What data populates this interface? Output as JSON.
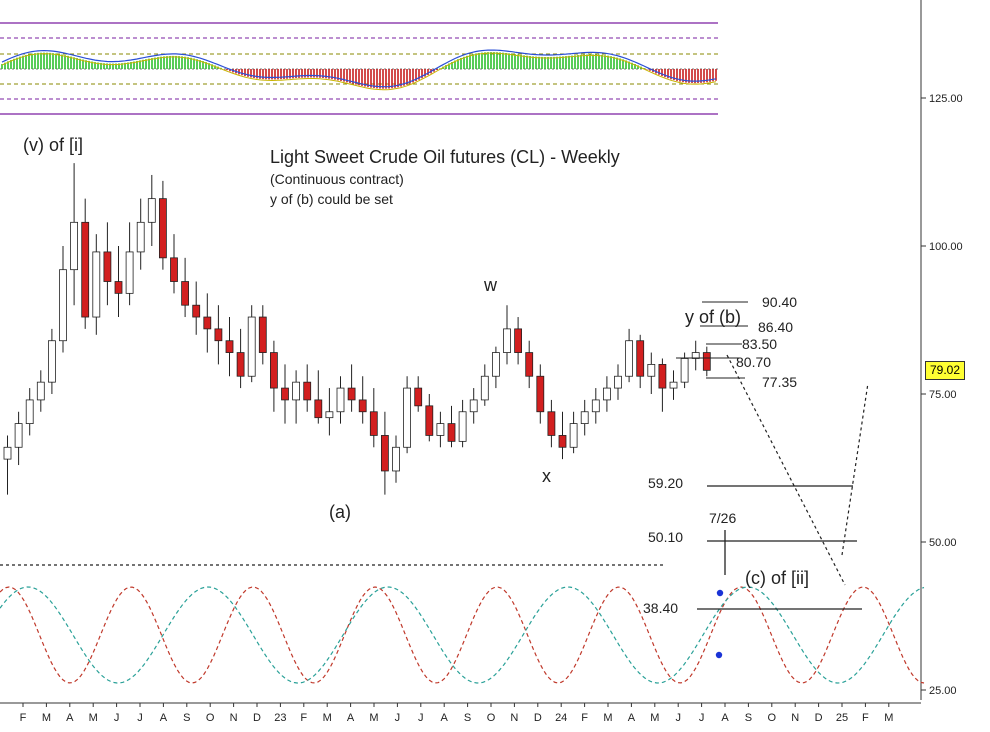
{
  "chart_data": {
    "type": "candlestick",
    "title": "Light Sweet Crude Oil futures (CL) - Weekly",
    "subtitle": "(Continuous contract)",
    "note": "y of (b) could be set",
    "current_price": "79.02",
    "y_axis": {
      "ticks": [
        "125.00",
        "100.00",
        "75.00",
        "50.00",
        "25.00"
      ],
      "tick_values": [
        125,
        100,
        75,
        50,
        25
      ],
      "ylim": [
        20,
        140
      ]
    },
    "x_axis": {
      "labels": [
        "F",
        "M",
        "A",
        "M",
        "J",
        "J",
        "A",
        "S",
        "O",
        "N",
        "D",
        "23",
        "F",
        "M",
        "A",
        "M",
        "J",
        "J",
        "A",
        "S",
        "O",
        "N",
        "D",
        "24",
        "F",
        "M",
        "A",
        "M",
        "J",
        "J",
        "A",
        "S",
        "O",
        "N",
        "D",
        "25",
        "F",
        "M"
      ]
    },
    "wave_labels": [
      {
        "text": "(v) of [i]",
        "price": "high ~114"
      },
      {
        "text": "(a)",
        "price": "low ~66"
      },
      {
        "text": "w",
        "price": "high ~90"
      },
      {
        "text": "x",
        "price": "low ~67"
      },
      {
        "text": "y of (b)",
        "price": "high ~84"
      },
      {
        "text": "(c) of [ii]",
        "price": "target"
      }
    ],
    "levels": [
      {
        "label": "90.40",
        "value": 90.4
      },
      {
        "label": "86.40",
        "value": 86.4
      },
      {
        "label": "83.50",
        "value": 83.5
      },
      {
        "label": "80.70",
        "value": 80.7
      },
      {
        "label": "77.35",
        "value": 77.35
      },
      {
        "label": "59.20",
        "value": 59.2
      },
      {
        "label": "50.10",
        "value": 50.1
      },
      {
        "label": "38.40",
        "value": 38.4
      }
    ],
    "date_marker": "7/26",
    "series": [
      {
        "name": "weekly candles",
        "ohlc": [
          [
            64,
            68,
            58,
            66
          ],
          [
            66,
            72,
            63,
            70
          ],
          [
            70,
            76,
            68,
            74
          ],
          [
            74,
            79,
            72,
            77
          ],
          [
            77,
            86,
            75,
            84
          ],
          [
            84,
            100,
            82,
            96
          ],
          [
            96,
            114,
            90,
            104
          ],
          [
            104,
            108,
            86,
            88
          ],
          [
            88,
            102,
            85,
            99
          ],
          [
            99,
            104,
            90,
            94
          ],
          [
            94,
            100,
            88,
            92
          ],
          [
            92,
            104,
            90,
            99
          ],
          [
            99,
            108,
            96,
            104
          ],
          [
            104,
            112,
            100,
            108
          ],
          [
            108,
            111,
            96,
            98
          ],
          [
            98,
            102,
            92,
            94
          ],
          [
            94,
            98,
            88,
            90
          ],
          [
            90,
            94,
            85,
            88
          ],
          [
            88,
            92,
            82,
            86
          ],
          [
            86,
            90,
            80,
            84
          ],
          [
            84,
            88,
            78,
            82
          ],
          [
            82,
            86,
            76,
            78
          ],
          [
            78,
            90,
            77,
            88
          ],
          [
            88,
            90,
            80,
            82
          ],
          [
            82,
            84,
            72,
            76
          ],
          [
            76,
            80,
            70,
            74
          ],
          [
            74,
            79,
            70,
            77
          ],
          [
            77,
            80,
            72,
            74
          ],
          [
            74,
            79,
            70,
            71
          ],
          [
            71,
            76,
            68,
            72
          ],
          [
            72,
            78,
            70,
            76
          ],
          [
            76,
            80,
            72,
            74
          ],
          [
            74,
            78,
            70,
            72
          ],
          [
            72,
            76,
            66,
            68
          ],
          [
            68,
            72,
            58,
            62
          ],
          [
            62,
            68,
            60,
            66
          ],
          [
            66,
            78,
            65,
            76
          ],
          [
            76,
            78,
            72,
            73
          ],
          [
            73,
            75,
            67,
            68
          ],
          [
            68,
            72,
            66,
            70
          ],
          [
            70,
            73,
            66,
            67
          ],
          [
            67,
            74,
            66,
            72
          ],
          [
            72,
            76,
            70,
            74
          ],
          [
            74,
            80,
            73,
            78
          ],
          [
            78,
            83,
            76,
            82
          ],
          [
            82,
            90,
            80,
            86
          ],
          [
            86,
            88,
            80,
            82
          ],
          [
            82,
            84,
            76,
            78
          ],
          [
            78,
            80,
            70,
            72
          ],
          [
            72,
            74,
            66,
            68
          ],
          [
            68,
            72,
            64,
            66
          ],
          [
            66,
            72,
            65,
            70
          ],
          [
            70,
            74,
            68,
            72
          ],
          [
            72,
            76,
            70,
            74
          ],
          [
            74,
            78,
            72,
            76
          ],
          [
            76,
            80,
            74,
            78
          ],
          [
            78,
            86,
            77,
            84
          ],
          [
            84,
            85,
            76,
            78
          ],
          [
            78,
            82,
            75,
            80
          ],
          [
            80,
            81,
            72,
            76
          ],
          [
            76,
            79,
            74,
            77
          ],
          [
            77,
            82,
            76,
            81
          ],
          [
            81,
            84,
            79,
            82
          ],
          [
            82,
            83,
            78,
            79
          ]
        ]
      }
    ],
    "cycles": [
      {
        "name": "red cycle",
        "color": "#c0392b"
      },
      {
        "name": "teal cycle",
        "color": "#2aa198"
      }
    ],
    "indicator": {
      "name": "oscillator",
      "bands": 5
    },
    "grid": false
  }
}
